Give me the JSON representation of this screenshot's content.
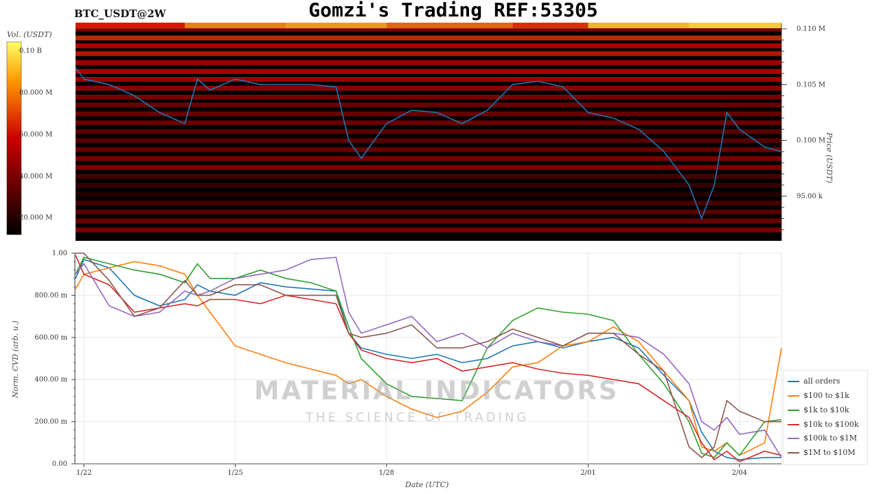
{
  "header": {
    "title": "Gomzi's Trading REF:53305",
    "symbol": "BTC_USDT@2W"
  },
  "watermark": {
    "brand": "MATERIAL INDICATORS",
    "tagline": "THE SCIENCE OF TRADING"
  },
  "colors": {
    "price_line": "#1f77b4",
    "heatmap_low": "#000000",
    "heatmap_mid": "#cc0000",
    "heatmap_high": "#ffff66"
  },
  "chart_data": [
    {
      "type": "heatmap",
      "ylabel": "Price (USDT)",
      "colorbar_label": "Vol. (USDT)",
      "colorbar_ticks": [
        "0.10 B",
        "80.000 M",
        "60.000 M",
        "40.000 M",
        "20.000 M"
      ],
      "y_ticks": [
        "0.110 M",
        "0.105 M",
        "0.100 M",
        "95.00 k"
      ],
      "y_tick_values": [
        110000,
        105000,
        100000,
        95000
      ],
      "ylim": [
        91000,
        110000
      ],
      "price_series": {
        "name": "Price",
        "x": [
          "1/21 20:00",
          "1/22 00:00",
          "1/22 12:00",
          "1/23 00:00",
          "1/23 12:00",
          "1/24 00:00",
          "1/24 06:00",
          "1/24 12:00",
          "1/25 00:00",
          "1/25 12:00",
          "1/26 00:00",
          "1/26 12:00",
          "1/27 00:00",
          "1/27 06:00",
          "1/27 12:00",
          "1/28 00:00",
          "1/28 12:00",
          "1/29 00:00",
          "1/29 12:00",
          "1/30 00:00",
          "1/30 12:00",
          "1/31 00:00",
          "1/31 12:00",
          "2/01 00:00",
          "2/01 12:00",
          "2/02 00:00",
          "2/02 12:00",
          "2/03 00:00",
          "2/03 06:00",
          "2/03 12:00",
          "2/03 18:00",
          "2/04 00:00",
          "2/04 12:00",
          "2/04 20:00"
        ],
        "y": [
          106500,
          105500,
          105000,
          104000,
          102500,
          101500,
          105500,
          104500,
          105500,
          105000,
          105000,
          105000,
          104800,
          100000,
          98400,
          101500,
          102700,
          102500,
          101500,
          102700,
          105000,
          105300,
          104800,
          102500,
          102000,
          101000,
          99000,
          96000,
          93000,
          96000,
          102500,
          101000,
          99400,
          99000
        ]
      },
      "heat_bands": [
        {
          "price": 109800,
          "intensity": 0.35
        },
        {
          "price": 109000,
          "intensity": 0.6
        },
        {
          "price": 108300,
          "intensity": 0.5
        },
        {
          "price": 107600,
          "intensity": 0.55
        },
        {
          "price": 106800,
          "intensity": 0.45
        },
        {
          "price": 106000,
          "intensity": 0.5
        },
        {
          "price": 105300,
          "intensity": 0.45
        },
        {
          "price": 104500,
          "intensity": 0.4
        },
        {
          "price": 103700,
          "intensity": 0.35
        },
        {
          "price": 103000,
          "intensity": 0.3
        },
        {
          "price": 102200,
          "intensity": 0.3
        },
        {
          "price": 101400,
          "intensity": 0.3
        },
        {
          "price": 100600,
          "intensity": 0.25
        },
        {
          "price": 99800,
          "intensity": 0.25
        },
        {
          "price": 99000,
          "intensity": 0.3
        },
        {
          "price": 98200,
          "intensity": 0.35
        },
        {
          "price": 97400,
          "intensity": 0.35
        },
        {
          "price": 96600,
          "intensity": 0.2
        },
        {
          "price": 95800,
          "intensity": 0.15
        },
        {
          "price": 95000,
          "intensity": 0.1
        },
        {
          "price": 94200,
          "intensity": 0.2
        },
        {
          "price": 93400,
          "intensity": 0.25
        },
        {
          "price": 92600,
          "intensity": 0.3
        },
        {
          "price": 91800,
          "intensity": 0.35
        }
      ],
      "top_strip": {
        "dates": [
          "1/21 20:00",
          "1/24 00:00",
          "1/26 00:00",
          "1/28 00:00",
          "1/30 12:00",
          "2/01 00:00",
          "2/03 00:00",
          "2/04 20:00"
        ],
        "intensity": [
          0.55,
          0.75,
          0.8,
          0.7,
          0.6,
          0.85,
          0.9,
          0.8
        ]
      }
    },
    {
      "type": "line",
      "ylabel": "Norm. CVD (arb. u.)",
      "xlabel": "Date (UTC)",
      "x_ticks": [
        "1/22",
        "1/25",
        "1/28",
        "2/01",
        "2/04"
      ],
      "y_ticks": [
        "1.00",
        "800.00 m",
        "600.00 m",
        "400.00 m",
        "200.00 m",
        "0.00"
      ],
      "ylim": [
        0,
        1
      ],
      "grid": true,
      "legend": "bottom-right",
      "x": [
        "1/21 20:00",
        "1/22 00:00",
        "1/22 12:00",
        "1/23 00:00",
        "1/23 12:00",
        "1/24 00:00",
        "1/24 06:00",
        "1/24 12:00",
        "1/25 00:00",
        "1/25 12:00",
        "1/26 00:00",
        "1/26 12:00",
        "1/27 00:00",
        "1/27 06:00",
        "1/27 12:00",
        "1/28 00:00",
        "1/28 12:00",
        "1/29 00:00",
        "1/29 12:00",
        "1/30 00:00",
        "1/30 12:00",
        "1/31 00:00",
        "1/31 12:00",
        "2/01 00:00",
        "2/01 12:00",
        "2/02 00:00",
        "2/02 12:00",
        "2/03 00:00",
        "2/03 06:00",
        "2/03 12:00",
        "2/03 18:00",
        "2/04 00:00",
        "2/04 12:00",
        "2/04 20:00"
      ],
      "series": [
        {
          "name": "all orders",
          "color": "#1f77b4",
          "values": [
            0.88,
            0.97,
            0.93,
            0.8,
            0.75,
            0.78,
            0.85,
            0.82,
            0.8,
            0.86,
            0.84,
            0.83,
            0.82,
            0.62,
            0.55,
            0.52,
            0.5,
            0.52,
            0.48,
            0.5,
            0.56,
            0.58,
            0.55,
            0.58,
            0.6,
            0.55,
            0.42,
            0.3,
            0.15,
            0.06,
            0.03,
            0.02,
            0.03,
            0.03
          ]
        },
        {
          "name": "$100 to $1k",
          "color": "#ff7f0e",
          "values": [
            0.83,
            0.9,
            0.93,
            0.96,
            0.94,
            0.9,
            0.8,
            0.72,
            0.56,
            0.52,
            0.48,
            0.45,
            0.42,
            0.38,
            0.4,
            0.32,
            0.26,
            0.22,
            0.25,
            0.34,
            0.46,
            0.48,
            0.56,
            0.58,
            0.65,
            0.58,
            0.44,
            0.3,
            0.08,
            0.06,
            0.1,
            0.04,
            0.1,
            0.55
          ]
        },
        {
          "name": "$1k to $10k",
          "color": "#2ca02c",
          "values": [
            0.9,
            0.98,
            0.95,
            0.92,
            0.9,
            0.86,
            0.95,
            0.88,
            0.88,
            0.92,
            0.88,
            0.86,
            0.82,
            0.65,
            0.5,
            0.38,
            0.32,
            0.31,
            0.3,
            0.55,
            0.68,
            0.74,
            0.72,
            0.71,
            0.68,
            0.52,
            0.38,
            0.2,
            0.05,
            0.03,
            0.1,
            0.04,
            0.2,
            0.21
          ]
        },
        {
          "name": "$10k to $100k",
          "color": "#d62728",
          "values": [
            0.99,
            0.9,
            0.85,
            0.72,
            0.74,
            0.76,
            0.75,
            0.78,
            0.78,
            0.76,
            0.8,
            0.78,
            0.76,
            0.62,
            0.54,
            0.5,
            0.48,
            0.5,
            0.44,
            0.46,
            0.48,
            0.45,
            0.43,
            0.42,
            0.4,
            0.38,
            0.3,
            0.22,
            0.1,
            0.02,
            0.06,
            0.01,
            0.06,
            0.04
          ]
        },
        {
          "name": "$100k to $1M",
          "color": "#9467bd",
          "values": [
            0.9,
            0.95,
            0.75,
            0.7,
            0.72,
            0.82,
            0.8,
            0.82,
            0.88,
            0.9,
            0.92,
            0.97,
            0.98,
            0.72,
            0.62,
            0.66,
            0.7,
            0.58,
            0.62,
            0.55,
            0.62,
            0.58,
            0.56,
            0.62,
            0.62,
            0.6,
            0.52,
            0.38,
            0.2,
            0.16,
            0.22,
            0.14,
            0.16,
            0.03
          ]
        },
        {
          "name": "$1M to $10M",
          "color": "#8c564b",
          "values": [
            1.0,
            1.0,
            0.87,
            0.7,
            0.74,
            0.87,
            0.8,
            0.8,
            0.85,
            0.85,
            0.8,
            0.8,
            0.8,
            0.62,
            0.6,
            0.62,
            0.66,
            0.55,
            0.55,
            0.58,
            0.64,
            0.6,
            0.56,
            0.62,
            0.62,
            0.52,
            0.44,
            0.08,
            0.03,
            0.08,
            0.3,
            0.25,
            0.2,
            0.2
          ]
        }
      ]
    }
  ]
}
